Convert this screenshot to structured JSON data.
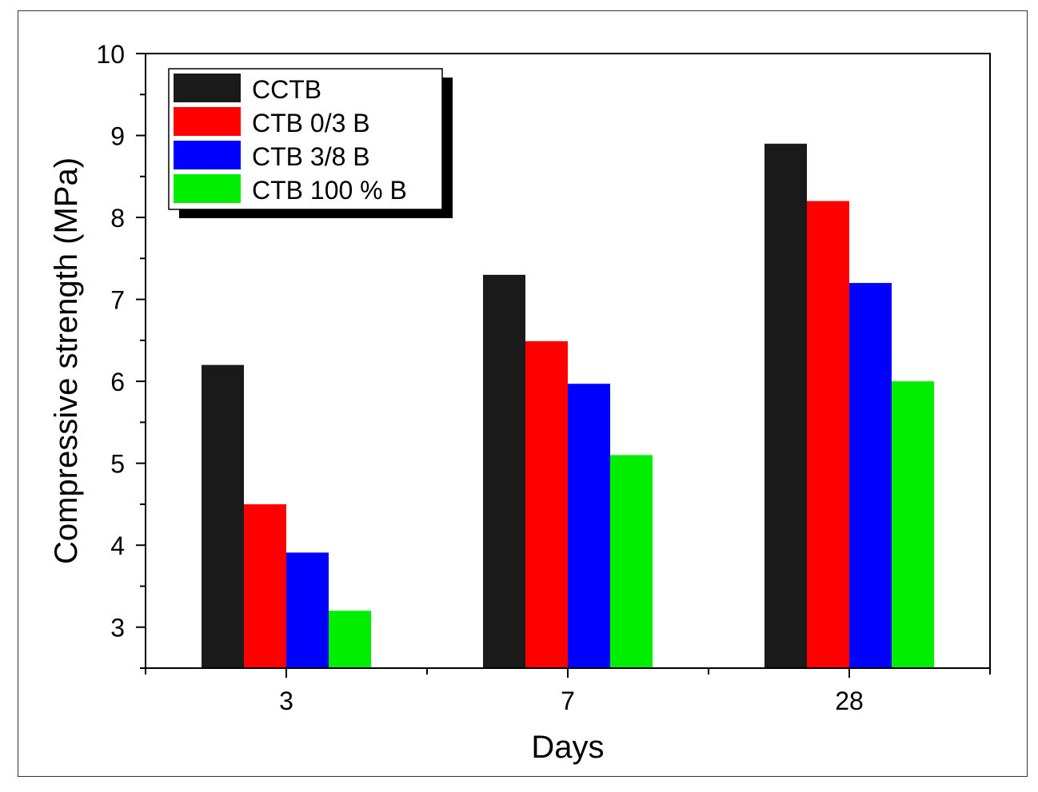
{
  "chart_data": {
    "type": "bar",
    "title": "",
    "xlabel": "Days",
    "ylabel": "Compressive strength (MPa)",
    "categories": [
      "3",
      "7",
      "28"
    ],
    "ylim": [
      2.5,
      10
    ],
    "yticks": [
      "3",
      "4",
      "5",
      "6",
      "7",
      "8",
      "9",
      "10"
    ],
    "grid": false,
    "legend_position": "top-left",
    "series": [
      {
        "name": "CCTB",
        "color": "#1a1a1a",
        "values": [
          6.2,
          7.3,
          8.9
        ]
      },
      {
        "name": "CTB 0/3 B",
        "color": "#ff0000",
        "values": [
          4.5,
          6.49,
          8.2
        ]
      },
      {
        "name": "CTB 3/8 B",
        "color": "#0000ff",
        "values": [
          3.91,
          5.97,
          7.2
        ]
      },
      {
        "name": "CTB 100 % B",
        "color": "#00ee00",
        "values": [
          3.2,
          5.1,
          6.0
        ]
      }
    ]
  }
}
